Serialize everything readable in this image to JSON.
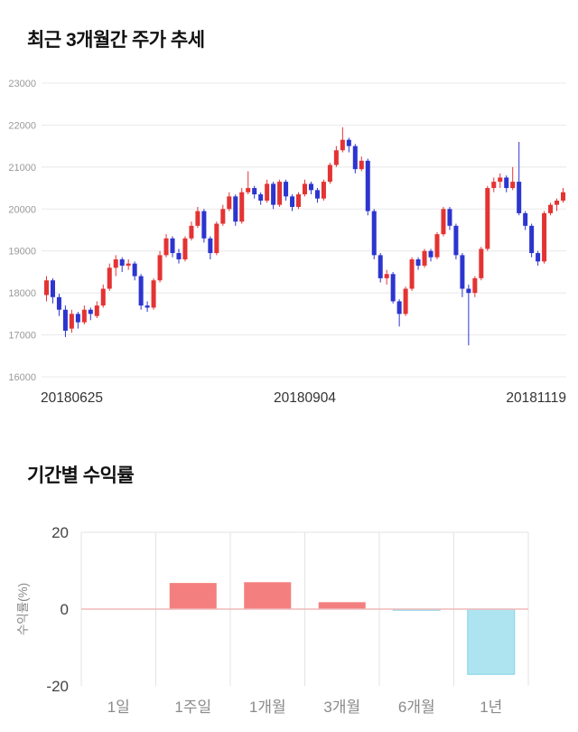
{
  "chart_data": [
    {
      "type": "candlestick",
      "title": "최근 3개월간 주가 추세",
      "ylim": [
        16000,
        23000
      ],
      "yticks": [
        16000,
        17000,
        18000,
        19000,
        20000,
        21000,
        22000,
        23000
      ],
      "x_labels": [
        "20180625",
        "20180904",
        "20181119"
      ],
      "up_color": "#e43333",
      "down_color": "#2c35cf",
      "grid_color": "#e8e8e8",
      "y_tick_color": "#999999",
      "x_label_color": "#333333",
      "candles": [
        [
          17950,
          18400,
          17800,
          18300
        ],
        [
          18300,
          18350,
          17750,
          17900
        ],
        [
          17900,
          17980,
          17450,
          17600
        ],
        [
          17600,
          17700,
          16950,
          17100
        ],
        [
          17150,
          17600,
          17050,
          17500
        ],
        [
          17500,
          17550,
          17150,
          17300
        ],
        [
          17300,
          17700,
          17250,
          17600
        ],
        [
          17600,
          17650,
          17350,
          17500
        ],
        [
          17450,
          17800,
          17400,
          17700
        ],
        [
          17700,
          18200,
          17650,
          18100
        ],
        [
          18100,
          18700,
          18050,
          18600
        ],
        [
          18600,
          18900,
          18400,
          18800
        ],
        [
          18800,
          18850,
          18500,
          18650
        ],
        [
          18650,
          18800,
          18550,
          18700
        ],
        [
          18700,
          18750,
          18300,
          18400
        ],
        [
          18400,
          18450,
          17600,
          17700
        ],
        [
          17700,
          17800,
          17550,
          17650
        ],
        [
          17650,
          18350,
          17600,
          18300
        ],
        [
          18300,
          19000,
          18250,
          18900
        ],
        [
          18900,
          19400,
          18850,
          19300
        ],
        [
          19300,
          19350,
          18850,
          18950
        ],
        [
          18950,
          19050,
          18700,
          18800
        ],
        [
          18800,
          19350,
          18750,
          19300
        ],
        [
          19300,
          19700,
          19250,
          19600
        ],
        [
          19600,
          20050,
          19550,
          19950
        ],
        [
          19950,
          20000,
          19200,
          19300
        ],
        [
          19300,
          19350,
          18800,
          18950
        ],
        [
          18950,
          19700,
          18900,
          19650
        ],
        [
          19650,
          20100,
          19600,
          20000
        ],
        [
          20000,
          20400,
          19950,
          20300
        ],
        [
          20300,
          20350,
          19600,
          19700
        ],
        [
          19700,
          20500,
          19650,
          20400
        ],
        [
          20400,
          20900,
          20350,
          20500
        ],
        [
          20500,
          20550,
          20250,
          20350
        ],
        [
          20350,
          20400,
          20100,
          20200
        ],
        [
          20200,
          20700,
          20150,
          20600
        ],
        [
          20600,
          20650,
          20000,
          20100
        ],
        [
          20100,
          20700,
          20050,
          20650
        ],
        [
          20650,
          20700,
          20200,
          20300
        ],
        [
          20300,
          20350,
          19950,
          20050
        ],
        [
          20050,
          20400,
          20000,
          20350
        ],
        [
          20350,
          20700,
          20300,
          20600
        ],
        [
          20600,
          20650,
          20350,
          20450
        ],
        [
          20450,
          20500,
          20150,
          20250
        ],
        [
          20250,
          20700,
          20200,
          20650
        ],
        [
          20650,
          21100,
          20600,
          21050
        ],
        [
          21050,
          21500,
          21000,
          21400
        ],
        [
          21400,
          21950,
          21350,
          21650
        ],
        [
          21650,
          21700,
          21350,
          21500
        ],
        [
          21500,
          21550,
          20850,
          20950
        ],
        [
          20950,
          21250,
          20900,
          21150
        ],
        [
          21150,
          21200,
          19850,
          19950
        ],
        [
          19950,
          20000,
          18800,
          18900
        ],
        [
          18900,
          18950,
          18250,
          18350
        ],
        [
          18350,
          18550,
          18200,
          18450
        ],
        [
          18450,
          18500,
          17750,
          17800
        ],
        [
          17800,
          17850,
          17200,
          17500
        ],
        [
          17500,
          18150,
          17450,
          18100
        ],
        [
          18100,
          18850,
          18050,
          18800
        ],
        [
          18800,
          18850,
          18550,
          18650
        ],
        [
          18650,
          19050,
          18600,
          19000
        ],
        [
          19000,
          19050,
          18750,
          18850
        ],
        [
          18850,
          19450,
          18800,
          19400
        ],
        [
          19400,
          20050,
          19350,
          20000
        ],
        [
          20000,
          20050,
          19500,
          19600
        ],
        [
          19600,
          19650,
          18800,
          18900
        ],
        [
          18900,
          18950,
          17900,
          18100
        ],
        [
          18100,
          18200,
          16750,
          18000
        ],
        [
          18000,
          18400,
          17900,
          18350
        ],
        [
          18350,
          19100,
          18300,
          19050
        ],
        [
          19050,
          20550,
          19000,
          20500
        ],
        [
          20500,
          20750,
          20400,
          20650
        ],
        [
          20650,
          20850,
          20500,
          20750
        ],
        [
          20750,
          20800,
          20400,
          20500
        ],
        [
          20500,
          21000,
          20450,
          20650
        ],
        [
          20650,
          21600,
          19850,
          19900
        ],
        [
          19900,
          19950,
          19500,
          19600
        ],
        [
          19600,
          19650,
          18850,
          18950
        ],
        [
          18950,
          19000,
          18650,
          18750
        ],
        [
          18750,
          19950,
          18700,
          19900
        ],
        [
          19900,
          20150,
          19850,
          20100
        ],
        [
          20100,
          20250,
          19950,
          20200
        ],
        [
          20200,
          20500,
          20150,
          20400
        ]
      ]
    },
    {
      "type": "bar",
      "title": "기간별 수익률",
      "ylabel": "수익률(%)",
      "categories": [
        "1일",
        "1주일",
        "1개월",
        "3개월",
        "6개월",
        "1년"
      ],
      "values": [
        0,
        6.8,
        7.0,
        1.8,
        -0.3,
        -17.0
      ],
      "ylim": [
        -20,
        20
      ],
      "yticks": [
        20,
        0,
        -20
      ],
      "pos_color": "#f47f7f",
      "neg_color": "#aee4f0",
      "neg_border_color": "#84d4e6",
      "grid_color": "#e3e3e3",
      "zero_line_color": "#f0b9b9",
      "y_tick_color": "#444444",
      "category_color": "#8a8a8a",
      "ylabel_color": "#888888"
    }
  ]
}
